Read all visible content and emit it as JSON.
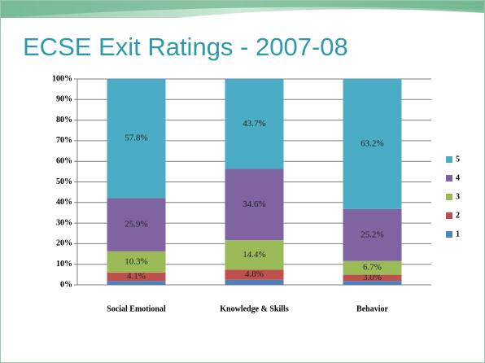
{
  "chart_data": {
    "type": "stacked_bar",
    "title": "ECSE Exit Ratings - 2007-08",
    "categories": [
      "Social Emotional",
      "Knowledge & Skills",
      "Behavior"
    ],
    "series": [
      {
        "name": "1",
        "color": "#4f81bd",
        "values": [
          1.9,
          2.5,
          1.9
        ]
      },
      {
        "name": "2",
        "color": "#c0504d",
        "values": [
          4.1,
          4.8,
          3.0
        ],
        "value_labels": [
          "4.1%",
          "4.8%",
          "3.0%"
        ]
      },
      {
        "name": "3",
        "color": "#9bbb59",
        "values": [
          10.3,
          14.4,
          6.7
        ],
        "value_labels": [
          "10.3%",
          "14.4%",
          "6.7%"
        ]
      },
      {
        "name": "4",
        "color": "#8064a2",
        "values": [
          25.9,
          34.6,
          25.2
        ],
        "value_labels": [
          "25.9%",
          "34.6%",
          "25.2%"
        ]
      },
      {
        "name": "5",
        "color": "#4bacc6",
        "values": [
          57.8,
          43.7,
          63.2
        ],
        "value_labels": [
          "57.8%",
          "43.7%",
          "63.2%"
        ]
      }
    ],
    "ylim": [
      0,
      100
    ],
    "yticks": [
      {
        "value": 0,
        "label": "0%"
      },
      {
        "value": 10,
        "label": "10%"
      },
      {
        "value": 20,
        "label": "20%"
      },
      {
        "value": 30,
        "label": "30%"
      },
      {
        "value": 40,
        "label": "40%"
      },
      {
        "value": 50,
        "label": "50%"
      },
      {
        "value": 60,
        "label": "60%"
      },
      {
        "value": 70,
        "label": "70%"
      },
      {
        "value": 80,
        "label": "80%"
      },
      {
        "value": 90,
        "label": "90%"
      },
      {
        "value": 100,
        "label": "100%"
      }
    ],
    "grid": true,
    "legend": "right"
  }
}
